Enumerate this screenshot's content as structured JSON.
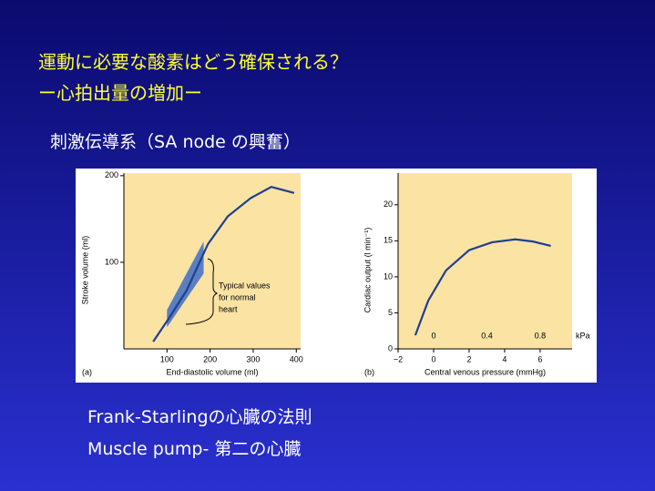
{
  "slide": {
    "title": [
      "運動に必要な酸素はどう確保される？",
      "ー心拍出量の増加ー"
    ],
    "subtitle": "刺激伝導系（SA node の興奮）",
    "notes": [
      "Frank-Starlingの心臓の法則",
      "Muscle pump- 第二の心臓"
    ]
  },
  "chart_data": [
    {
      "type": "line",
      "panel": "(a)",
      "x_label": "End-diastolic volume (ml)",
      "y_label": "Stroke volume (ml)",
      "x": [
        68,
        104,
        146,
        195,
        241,
        294,
        342,
        395
      ],
      "values": [
        8.4,
        35,
        68,
        121,
        153,
        174,
        187,
        180
      ],
      "color": "#1f3f8f",
      "band": {
        "x": [
          100,
          185
        ],
        "low": [
          25,
          87
        ],
        "high": [
          45,
          124
        ],
        "color": "#5b7fc0"
      },
      "annotation": [
        "Typical values",
        "for normal",
        "heart"
      ],
      "xlim": [
        0,
        410
      ],
      "ylim": [
        0,
        203
      ],
      "xticks": [
        100,
        200,
        300,
        400
      ],
      "yticks": [
        100,
        200
      ]
    },
    {
      "type": "line",
      "panel": "(b)",
      "x_label": "Central venous pressure (mmHg)",
      "y_label": "Cardiac output (l min⁻¹)",
      "x": [
        -1.03,
        -0.3,
        0.7,
        2,
        3.3,
        4.6,
        5.6,
        6.6
      ],
      "values": [
        1.9,
        6.7,
        10.9,
        13.7,
        14.8,
        15.2,
        14.9,
        14.3
      ],
      "color": "#1f3f8f",
      "xlim": [
        -2,
        7.8
      ],
      "ylim": [
        0,
        24.4
      ],
      "xticks": [
        {
          "value": -2,
          "label": "−2"
        },
        0,
        2,
        4,
        6
      ],
      "yticks": [
        0,
        5,
        10,
        15,
        20
      ],
      "x2_label": "kPa",
      "x2lim": [
        -0.267,
        1.04
      ],
      "x2ticks": [
        0,
        0.4,
        0.8
      ]
    }
  ]
}
